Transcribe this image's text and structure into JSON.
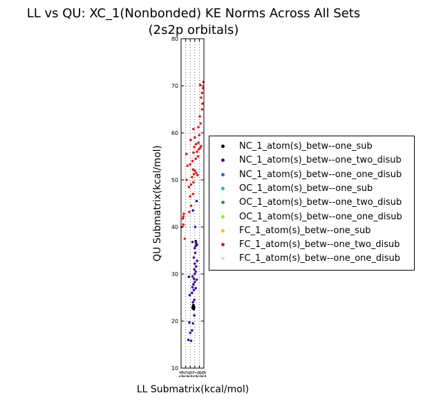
{
  "chart_data": {
    "type": "scatter",
    "title": "LL vs QU: XC_1(Nonbonded) KE Norms Across All Sets",
    "subtitle": "(2s2p orbitals)",
    "xlabel": "LL Submatrix(kcal/mol)",
    "ylabel": "QU Submatrix(kcal/mol)",
    "xlim": [
      14,
      19
    ],
    "ylim": [
      10,
      80
    ],
    "x_ticks": [
      "14",
      "15",
      "16",
      "17",
      "18",
      "19"
    ],
    "y_ticks": [
      "10",
      "20",
      "30",
      "40",
      "50",
      "60",
      "70",
      "80"
    ],
    "grid": true,
    "legend_position": "right",
    "series": [
      {
        "name": "NC_1_atom(s)_betw--one_sub",
        "color": "#000000",
        "points": [
          [
            16.5,
            22.8
          ],
          [
            16.6,
            23.2
          ],
          [
            16.7,
            22.6
          ],
          [
            16.8,
            23.0
          ],
          [
            16.9,
            22.9
          ],
          [
            17.2,
            37.0
          ],
          [
            16.7,
            23.4
          ],
          [
            16.8,
            22.5
          ]
        ]
      },
      {
        "name": "NC_1_atom(s)_betw--one_two_disub",
        "color": "#3a0d9c",
        "points": [
          [
            15.6,
            16.0
          ],
          [
            16.2,
            15.8
          ],
          [
            16.0,
            17.5
          ],
          [
            16.4,
            18.0
          ],
          [
            15.8,
            19.7
          ],
          [
            16.6,
            19.5
          ],
          [
            16.9,
            21.2
          ],
          [
            16.6,
            24.0
          ],
          [
            16.9,
            24.5
          ],
          [
            15.9,
            25.5
          ],
          [
            16.4,
            26.0
          ],
          [
            16.8,
            26.6
          ],
          [
            16.5,
            27.2
          ],
          [
            17.2,
            27.0
          ],
          [
            16.7,
            27.8
          ],
          [
            17.0,
            28.3
          ],
          [
            16.8,
            29.0
          ],
          [
            17.4,
            28.8
          ],
          [
            16.5,
            29.5
          ],
          [
            15.7,
            29.4
          ],
          [
            17.0,
            30.0
          ],
          [
            17.2,
            30.5
          ],
          [
            16.9,
            31.0
          ],
          [
            17.3,
            31.6
          ],
          [
            17.0,
            32.2
          ],
          [
            17.5,
            32.8
          ],
          [
            16.8,
            33.5
          ],
          [
            17.1,
            34.5
          ],
          [
            17.0,
            35.5
          ],
          [
            17.2,
            36.0
          ],
          [
            17.5,
            36.2
          ],
          [
            17.3,
            36.6
          ],
          [
            16.5,
            36.8
          ],
          [
            17.1,
            40.0
          ],
          [
            16.6,
            43.5
          ],
          [
            17.4,
            45.5
          ]
        ]
      },
      {
        "name": "NC_1_atom(s)_betw--one_one_disub",
        "color": "#1f77b4",
        "points": []
      },
      {
        "name": "OC_1_atom(s)_betw--one_sub",
        "color": "#17becf",
        "points": []
      },
      {
        "name": "OC_1_atom(s)_betw--one_two_disub",
        "color": "#2ca02c",
        "points": []
      },
      {
        "name": "OC_1_atom(s)_betw--one_one_disub",
        "color": "#7fff00",
        "points": []
      },
      {
        "name": "FC_1_atom(s)_betw--one_sub",
        "color": "#ffc000",
        "points": []
      },
      {
        "name": "FC_1_atom(s)_betw--one_two_disub",
        "color": "#e31a1c",
        "points": [
          [
            14.1,
            40.0
          ],
          [
            14.5,
            40.5
          ],
          [
            14.8,
            37.5
          ],
          [
            14.4,
            41.8
          ],
          [
            14.6,
            42.8
          ],
          [
            14.5,
            42.2
          ],
          [
            15.8,
            43.2
          ],
          [
            16.2,
            44.5
          ],
          [
            16.0,
            46.5
          ],
          [
            16.6,
            47.0
          ],
          [
            15.7,
            48.5
          ],
          [
            16.2,
            49.0
          ],
          [
            16.7,
            49.5
          ],
          [
            15.2,
            50.0
          ],
          [
            16.4,
            50.6
          ],
          [
            16.8,
            51.2
          ],
          [
            17.3,
            51.5
          ],
          [
            16.6,
            52.2
          ],
          [
            17.0,
            52.0
          ],
          [
            17.6,
            51.0
          ],
          [
            15.4,
            53.0
          ],
          [
            16.0,
            53.3
          ],
          [
            16.5,
            54.0
          ],
          [
            17.2,
            54.5
          ],
          [
            17.7,
            55.0
          ],
          [
            15.2,
            55.5
          ],
          [
            16.7,
            55.8
          ],
          [
            17.5,
            56.0
          ],
          [
            17.9,
            56.5
          ],
          [
            18.2,
            56.8
          ],
          [
            16.9,
            57.0
          ],
          [
            17.3,
            57.6
          ],
          [
            17.8,
            57.9
          ],
          [
            18.4,
            57.2
          ],
          [
            16.1,
            58.5
          ],
          [
            17.0,
            59.0
          ],
          [
            18.0,
            59.5
          ],
          [
            16.7,
            60.8
          ],
          [
            17.8,
            61.2
          ],
          [
            18.3,
            62.0
          ],
          [
            18.1,
            63.5
          ],
          [
            18.6,
            65.0
          ],
          [
            18.7,
            66.2
          ],
          [
            18.4,
            67.5
          ],
          [
            18.6,
            68.5
          ],
          [
            18.8,
            69.5
          ],
          [
            18.2,
            70.2
          ],
          [
            18.9,
            70.8
          ]
        ]
      },
      {
        "name": "FC_1_atom(s)_betw--one_one_disub",
        "color": "#d9d9d9",
        "points": []
      }
    ]
  }
}
